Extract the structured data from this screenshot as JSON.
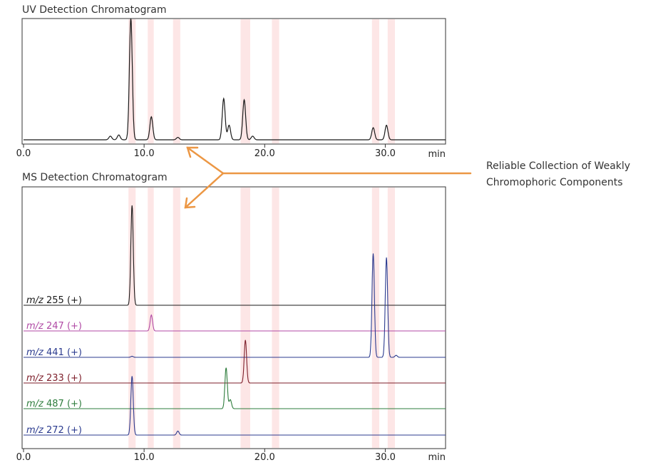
{
  "chart_data": [
    {
      "type": "line",
      "title": "UV Detection Chromatogram",
      "x_unit": "min",
      "xlim": [
        0,
        35
      ],
      "x_ticks": [
        "0.0",
        "10.0",
        "20.0",
        "30.0"
      ],
      "x_tick_values": [
        0,
        10,
        20,
        30
      ],
      "collection_bands": [
        [
          8.7,
          9.3
        ],
        [
          10.3,
          10.8
        ],
        [
          12.4,
          13.0
        ],
        [
          18.0,
          18.8
        ],
        [
          20.6,
          21.2
        ],
        [
          28.9,
          29.5
        ],
        [
          30.2,
          30.8
        ]
      ],
      "peaks": [
        {
          "rt": 7.2,
          "height": 0.03
        },
        {
          "rt": 7.9,
          "height": 0.04
        },
        {
          "rt": 8.9,
          "height": 1.0
        },
        {
          "rt": 10.6,
          "height": 0.19
        },
        {
          "rt": 12.8,
          "height": 0.02
        },
        {
          "rt": 16.6,
          "height": 0.34
        },
        {
          "rt": 17.05,
          "height": 0.12
        },
        {
          "rt": 18.3,
          "height": 0.33
        },
        {
          "rt": 19.0,
          "height": 0.03
        },
        {
          "rt": 29.0,
          "height": 0.1
        },
        {
          "rt": 30.1,
          "height": 0.12
        }
      ]
    },
    {
      "type": "line",
      "title": "MS Detection Chromatogram",
      "x_unit": "min",
      "xlim": [
        0,
        35
      ],
      "x_ticks": [
        "0.0",
        "10.0",
        "20.0",
        "30.0"
      ],
      "x_tick_values": [
        0,
        10,
        20,
        30
      ],
      "collection_bands": [
        [
          8.7,
          9.3
        ],
        [
          10.3,
          10.8
        ],
        [
          12.4,
          13.0
        ],
        [
          18.0,
          18.8
        ],
        [
          20.6,
          21.2
        ],
        [
          28.9,
          29.5
        ],
        [
          30.2,
          30.8
        ]
      ],
      "series": [
        {
          "name": "m/z 255 (+)",
          "mz": "m/z",
          "rest": " 255 (+)",
          "color": "#1a1a1a",
          "peaks": [
            {
              "rt": 9.0,
              "height": 1.0
            }
          ]
        },
        {
          "name": "m/z 247 (+)",
          "mz": "m/z",
          "rest": " 247 (+)",
          "color": "#b04aa5",
          "peaks": [
            {
              "rt": 10.6,
              "height": 0.16
            }
          ]
        },
        {
          "name": "m/z 441 (+)",
          "mz": "m/z",
          "rest": " 441 (+)",
          "color": "#2b3b8f",
          "peaks": [
            {
              "rt": 9.0,
              "height": 0.01
            },
            {
              "rt": 29.0,
              "height": 1.04
            },
            {
              "rt": 30.1,
              "height": 1.0
            },
            {
              "rt": 30.9,
              "height": 0.02
            }
          ]
        },
        {
          "name": "m/z 233 (+)",
          "mz": "m/z",
          "rest": " 233 (+)",
          "color": "#7d1e2a",
          "peaks": [
            {
              "rt": 18.4,
              "height": 0.43
            }
          ]
        },
        {
          "name": "m/z 487 (+)",
          "mz": "m/z",
          "rest": " 487 (+)",
          "color": "#2e7d3d",
          "peaks": [
            {
              "rt": 16.8,
              "height": 0.41
            },
            {
              "rt": 17.15,
              "height": 0.09
            }
          ]
        },
        {
          "name": "m/z 272 (+)",
          "mz": "m/z",
          "rest": " 272 (+)",
          "color": "#2b3b8f",
          "peaks": [
            {
              "rt": 9.0,
              "height": 0.59
            },
            {
              "rt": 12.8,
              "height": 0.04
            }
          ]
        }
      ]
    }
  ],
  "annotation": {
    "line1": "Reliable Collection of Weakly",
    "line2": "Chromophoric Components"
  },
  "colors": {
    "band": "#fde6e6",
    "arrow": "#ec9744",
    "frame": "#333333"
  }
}
